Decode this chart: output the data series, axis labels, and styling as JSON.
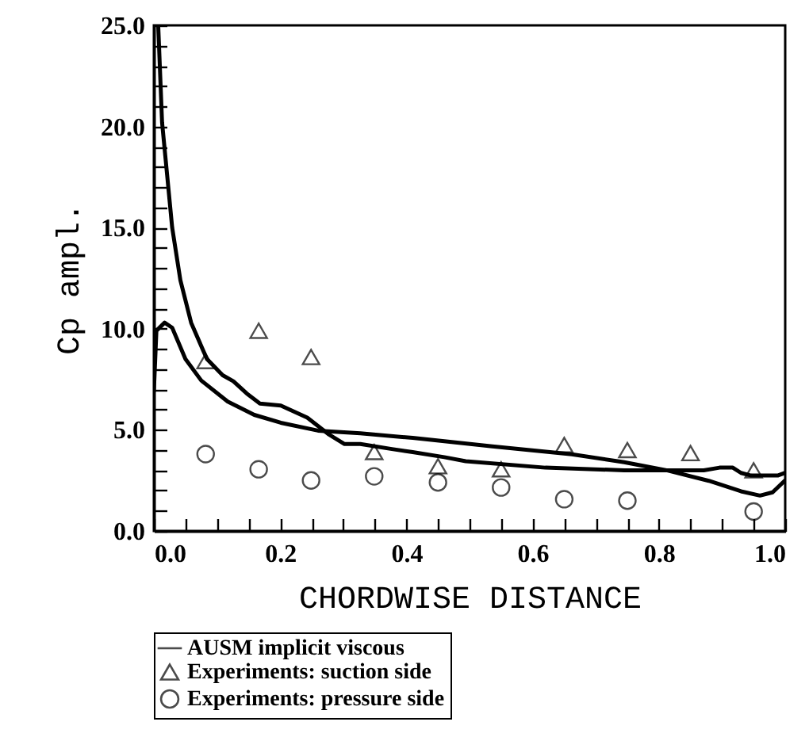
{
  "chart_data": {
    "type": "line",
    "xlabel": "CHORDWISE DISTANCE",
    "ylabel": "Cp ampl.",
    "legend": "bottom",
    "grid": false,
    "xlim": [
      0,
      1
    ],
    "ylim": [
      0,
      25
    ],
    "xticks": [
      {
        "value": 0,
        "label": "0.0"
      },
      {
        "value": 0.05,
        "label": null
      },
      {
        "value": 0.1,
        "label": null
      },
      {
        "value": 0.15,
        "label": null
      },
      {
        "value": 0.2,
        "label": "0.2"
      },
      {
        "value": 0.25,
        "label": null
      },
      {
        "value": 0.3,
        "label": null
      },
      {
        "value": 0.35,
        "label": null
      },
      {
        "value": 0.4,
        "label": "0.4"
      },
      {
        "value": 0.45,
        "label": null
      },
      {
        "value": 0.5,
        "label": null
      },
      {
        "value": 0.55,
        "label": null
      },
      {
        "value": 0.6,
        "label": "0.6"
      },
      {
        "value": 0.65,
        "label": null
      },
      {
        "value": 0.7,
        "label": null
      },
      {
        "value": 0.75,
        "label": null
      },
      {
        "value": 0.8,
        "label": "0.8"
      },
      {
        "value": 0.85,
        "label": null
      },
      {
        "value": 0.9,
        "label": null
      },
      {
        "value": 0.95,
        "label": null
      },
      {
        "value": 1,
        "label": "1.0"
      }
    ],
    "yticks": [
      {
        "value": 0,
        "label": "0.0"
      },
      {
        "value": 1,
        "label": null
      },
      {
        "value": 2,
        "label": null
      },
      {
        "value": 3,
        "label": null
      },
      {
        "value": 4,
        "label": null
      },
      {
        "value": 5,
        "label": "5.0"
      },
      {
        "value": 6,
        "label": null
      },
      {
        "value": 7,
        "label": null
      },
      {
        "value": 8,
        "label": null
      },
      {
        "value": 9,
        "label": null
      },
      {
        "value": 10,
        "label": "10.0"
      },
      {
        "value": 11,
        "label": null
      },
      {
        "value": 12,
        "label": null
      },
      {
        "value": 13,
        "label": null
      },
      {
        "value": 14,
        "label": null
      },
      {
        "value": 15,
        "label": "15.0"
      },
      {
        "value": 16,
        "label": null
      },
      {
        "value": 17,
        "label": null
      },
      {
        "value": 18,
        "label": null
      },
      {
        "value": 19,
        "label": null
      },
      {
        "value": 20,
        "label": "20.0"
      },
      {
        "value": 21,
        "label": null
      },
      {
        "value": 22,
        "label": null
      },
      {
        "value": 23,
        "label": null
      },
      {
        "value": 24,
        "label": null
      },
      {
        "value": 25,
        "label": "25.0"
      }
    ],
    "series": [
      {
        "name": "AUSM implicit viscous",
        "type": "line",
        "marker": "none",
        "line_style": "solid",
        "color": "#000000",
        "x": [
          0.007,
          0.013,
          0.021,
          0.029,
          0.042,
          0.059,
          0.084,
          0.109,
          0.126,
          0.147,
          0.168,
          0.201,
          0.243,
          0.276,
          0.302,
          0.327,
          0.377,
          0.41,
          0.46,
          0.494,
          0.62,
          0.745,
          0.812,
          0.871,
          0.896,
          0.917,
          0.93,
          0.946,
          0.988,
          0.999
        ],
        "values": [
          24.9,
          20.2,
          17.6,
          15.0,
          12.4,
          10.3,
          8.5,
          7.7,
          7.4,
          6.8,
          6.3,
          6.2,
          5.6,
          4.8,
          4.3,
          4.3,
          4.05,
          3.9,
          3.65,
          3.45,
          3.13,
          3.0,
          3.0,
          3.0,
          3.13,
          3.13,
          2.87,
          2.74,
          2.74,
          2.87
        ]
      },
      {
        "type": "line",
        "marker": "none",
        "line_style": "solid",
        "color": "#000000",
        "x": [
          0,
          0.004,
          0.017,
          0.029,
          0.05,
          0.075,
          0.117,
          0.159,
          0.201,
          0.26,
          0.327,
          0.41,
          0.46,
          0.536,
          0.662,
          0.745,
          0.812,
          0.879,
          0.93,
          0.96,
          0.98,
          0.999
        ],
        "values": [
          6.9,
          9.9,
          10.3,
          10.05,
          8.5,
          7.44,
          6.4,
          5.74,
          5.35,
          4.96,
          4.83,
          4.6,
          4.44,
          4.18,
          3.79,
          3.4,
          3.0,
          2.48,
          1.96,
          1.75,
          1.91,
          2.48
        ]
      },
      {
        "name": "Experiments: suction side",
        "type": "scatter",
        "marker": "triangle",
        "color": "#000000",
        "x": [
          0.082,
          0.166,
          0.249,
          0.349,
          0.45,
          0.55,
          0.65,
          0.75,
          0.85,
          0.95
        ],
        "values": [
          8.4,
          9.9,
          8.6,
          3.9,
          3.2,
          3.05,
          4.25,
          4.0,
          3.85,
          3.0
        ]
      },
      {
        "name": "Experiments: pressure side",
        "type": "scatter",
        "marker": "circle",
        "color": "#000000",
        "x": [
          0.082,
          0.166,
          0.249,
          0.349,
          0.45,
          0.55,
          0.65,
          0.75,
          0.95
        ],
        "values": [
          3.8,
          3.05,
          2.5,
          2.7,
          2.4,
          2.15,
          1.57,
          1.5,
          0.96
        ]
      }
    ]
  }
}
